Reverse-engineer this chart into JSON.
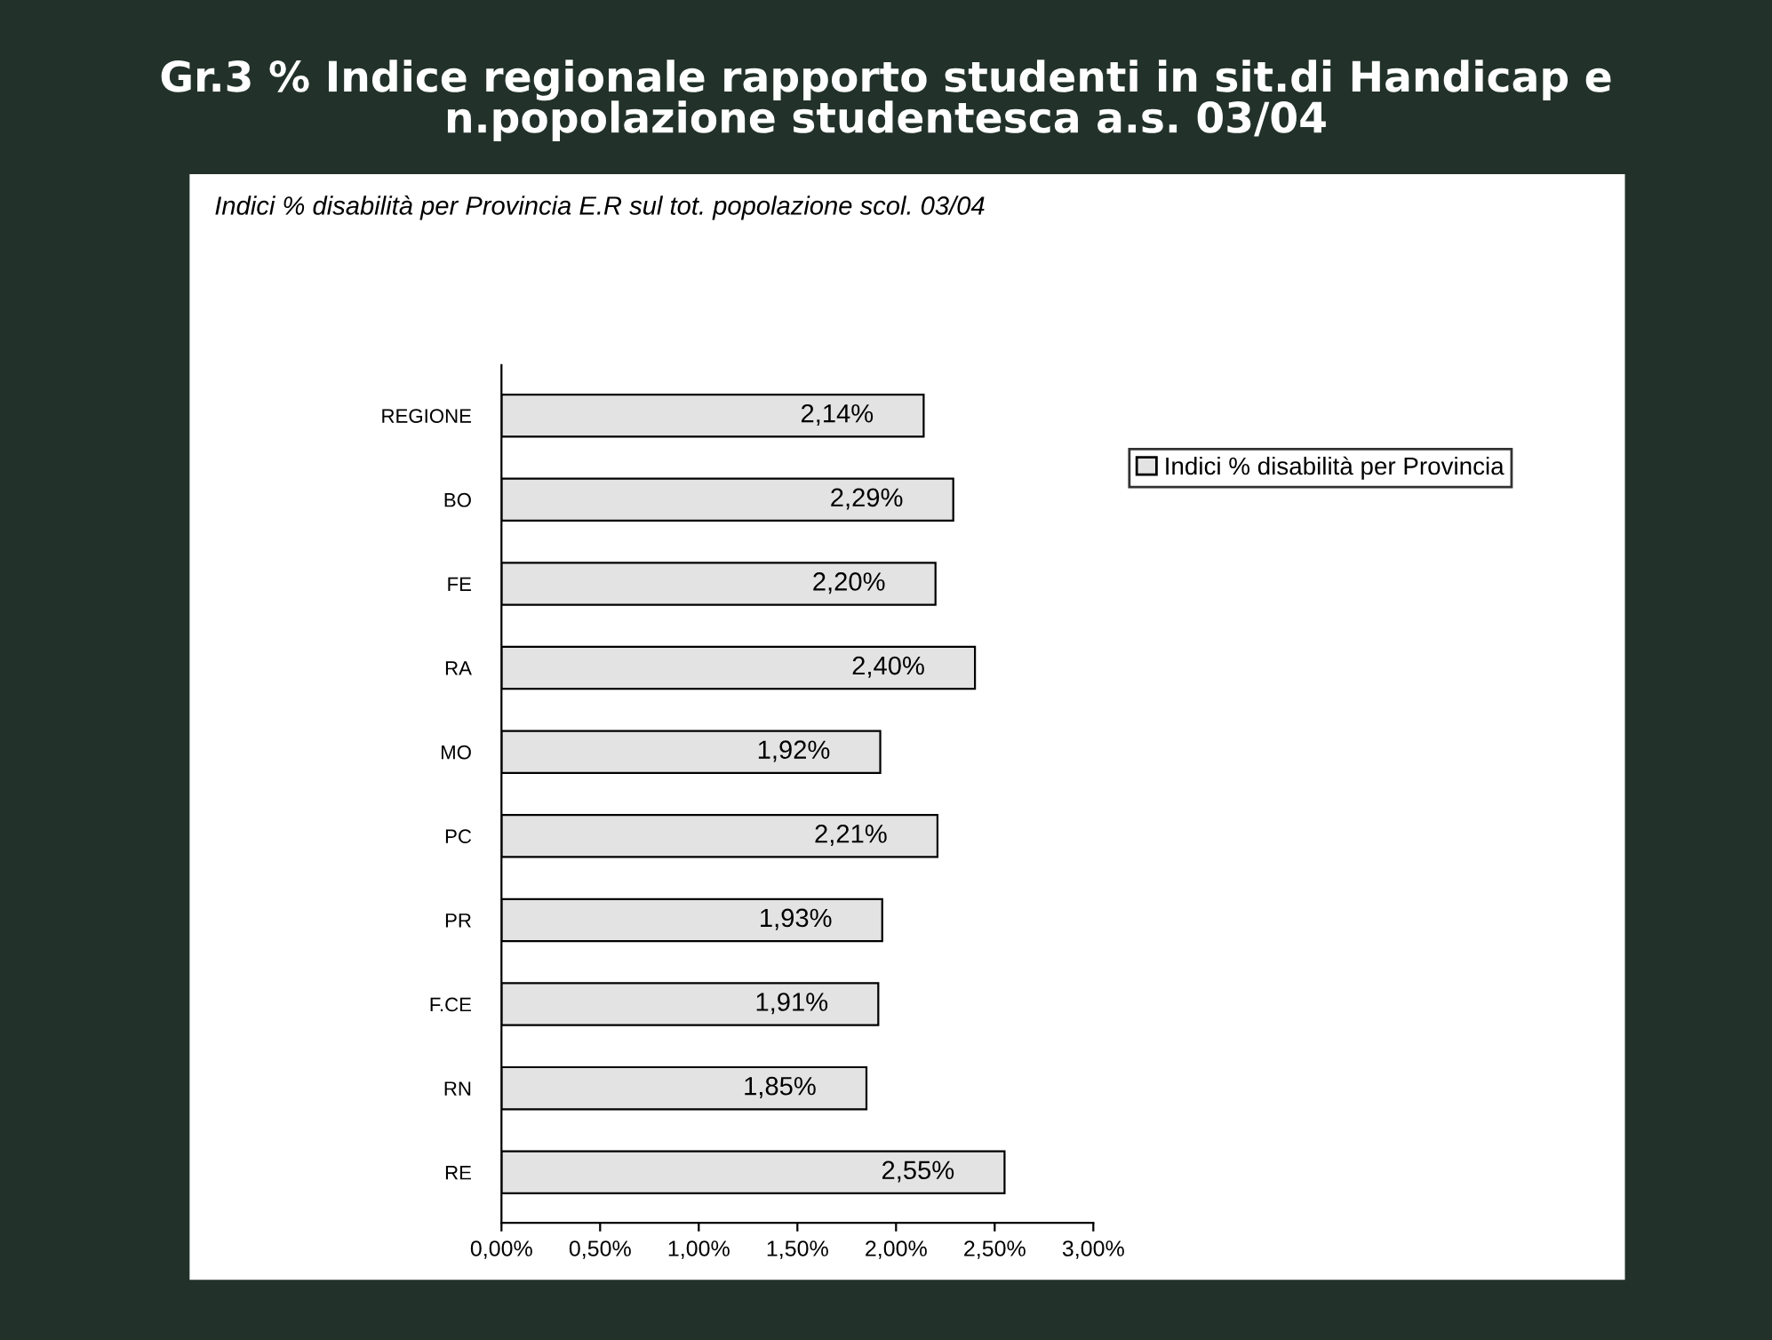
{
  "chart_data": {
    "type": "bar",
    "orientation": "horizontal",
    "title": "Gr.3 % Indice regionale rapporto studenti in sit.di Handicap e\nn.popolazione studentesca a.s. 03/04",
    "subtitle": "Indici % disabilità per Provincia E.R sul tot. popolazione scol. 03/04",
    "categories": [
      "REGIONE",
      "BO",
      "FE",
      "RA",
      "MO",
      "PC",
      "PR",
      "F.CE",
      "RN",
      "RE"
    ],
    "series": [
      {
        "name": "Indici % disabilità per Provincia",
        "color": "#e3e3e3",
        "values": [
          2.14,
          2.29,
          2.2,
          2.4,
          1.92,
          2.21,
          1.93,
          1.91,
          1.85,
          2.55
        ],
        "value_labels": [
          "2,14%",
          "2,29%",
          "2,20%",
          "2,40%",
          "1,92%",
          "2,21%",
          "1,93%",
          "1,91%",
          "1,85%",
          "2,55%"
        ]
      }
    ],
    "xlim": [
      0,
      3
    ],
    "xticks": [
      {
        "value": 0,
        "label": "0,00%"
      },
      {
        "value": 0.5,
        "label": "0,50%"
      },
      {
        "value": 1,
        "label": "1,00%"
      },
      {
        "value": 1.5,
        "label": "1,50%"
      },
      {
        "value": 2,
        "label": "2,00%"
      },
      {
        "value": 2.5,
        "label": "2,50%"
      },
      {
        "value": 3,
        "label": "3,00%"
      }
    ],
    "legend": "right",
    "grid": false
  }
}
